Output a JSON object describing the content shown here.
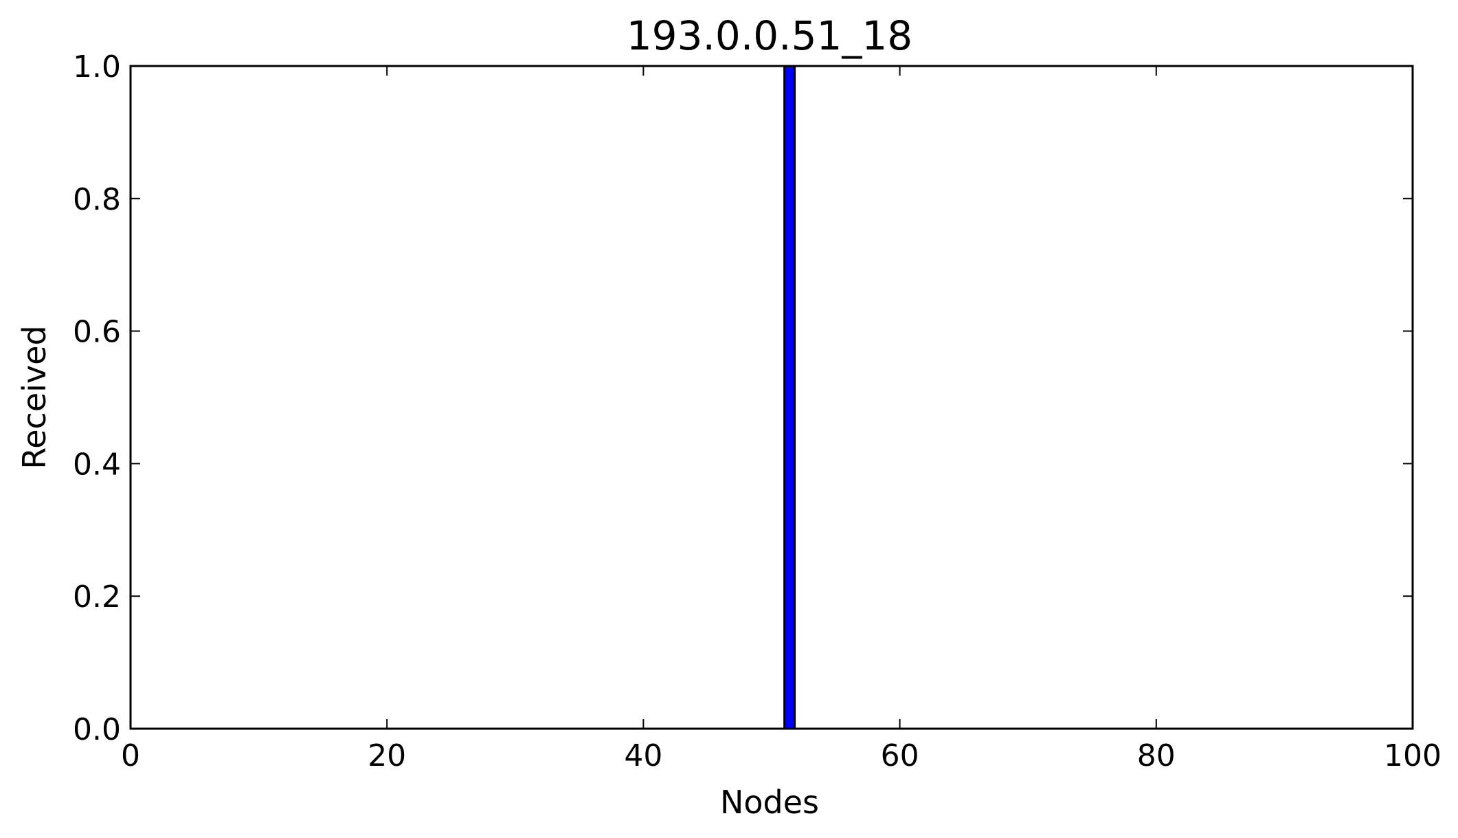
{
  "chart_data": {
    "type": "bar",
    "title": "193.0.0.51_18",
    "xlabel": "Nodes",
    "ylabel": "Received",
    "xlim": [
      0,
      100
    ],
    "ylim": [
      0.0,
      1.0
    ],
    "x_ticks": [
      0,
      20,
      40,
      60,
      80,
      100
    ],
    "x_tick_labels": [
      "0",
      "20",
      "40",
      "60",
      "80",
      "100"
    ],
    "y_ticks": [
      0.0,
      0.2,
      0.4,
      0.6,
      0.8,
      1.0
    ],
    "y_tick_labels": [
      "0.0",
      "0.2",
      "0.4",
      "0.6",
      "0.8",
      "1.0"
    ],
    "bars": [
      {
        "x": 51,
        "width": 0.8,
        "value": 1.0
      }
    ],
    "grid": false,
    "legend": "none",
    "colors": {
      "bar_fill": "#0000ff",
      "bar_edge": "#000000",
      "axes": "#000000"
    }
  }
}
